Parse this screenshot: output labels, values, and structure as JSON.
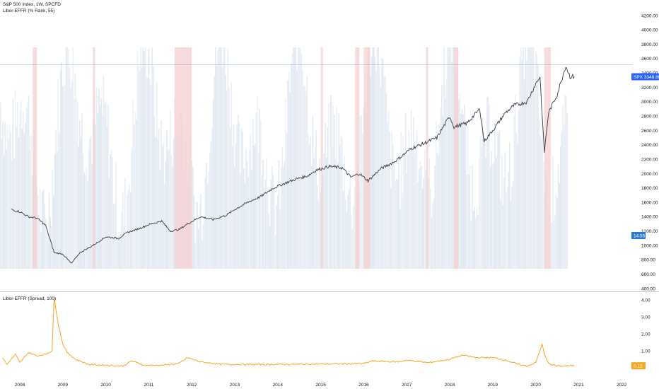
{
  "legends": {
    "price_title": "S&P 500 Index, 1W, SPCFD",
    "rank_title": "Libor-EFFR (% Rank, 55)",
    "spread_title": "Libor-EFFR (Spread, 100)"
  },
  "chart_data": [
    {
      "type": "line",
      "title": "S&P 500 Index, 1W, SPCFD",
      "x_ticks": [
        "2008",
        "2009",
        "2010",
        "2011",
        "2012",
        "2013",
        "2014",
        "2015",
        "2016",
        "2017",
        "2018",
        "2019",
        "2020",
        "2021",
        "2022"
      ],
      "y_ticks": [
        "4200.00",
        "4000.00",
        "3800.00",
        "3600.00",
        "3400.00",
        "3200.00",
        "3000.00",
        "2800.00",
        "2600.00",
        "2400.00",
        "2200.00",
        "2000.00",
        "1800.00",
        "1600.00",
        "1400.00",
        "1200.00",
        "1000.00",
        "800.00",
        "600.00",
        "400.00"
      ],
      "ylim": [
        400,
        4200
      ],
      "x": [
        2007.8,
        2008.0,
        2008.2,
        2008.4,
        2008.6,
        2008.8,
        2009.0,
        2009.2,
        2009.4,
        2009.7,
        2010.0,
        2010.3,
        2010.5,
        2010.8,
        2011.0,
        2011.3,
        2011.5,
        2011.7,
        2011.9,
        2012.2,
        2012.5,
        2012.8,
        2013.0,
        2013.3,
        2013.6,
        2013.9,
        2014.1,
        2014.4,
        2014.7,
        2014.9,
        2015.2,
        2015.5,
        2015.7,
        2015.9,
        2016.1,
        2016.4,
        2016.7,
        2016.9,
        2017.1,
        2017.4,
        2017.7,
        2018.0,
        2018.1,
        2018.4,
        2018.7,
        2018.8,
        2019.0,
        2019.3,
        2019.5,
        2019.8,
        2020.0,
        2020.1,
        2020.2,
        2020.3,
        2020.5,
        2020.7,
        2020.8,
        2020.9
      ],
      "y": [
        1500,
        1470,
        1400,
        1380,
        1280,
        900,
        880,
        750,
        900,
        1000,
        1120,
        1100,
        1180,
        1240,
        1290,
        1340,
        1200,
        1220,
        1300,
        1400,
        1360,
        1420,
        1500,
        1600,
        1680,
        1800,
        1850,
        1920,
        1970,
        2050,
        2100,
        2080,
        1950,
        2000,
        1900,
        2070,
        2160,
        2250,
        2350,
        2420,
        2500,
        2800,
        2650,
        2700,
        2900,
        2450,
        2600,
        2850,
        2950,
        3000,
        3250,
        3350,
        2300,
        2850,
        3100,
        3500,
        3350,
        3350
      ],
      "price_tag": {
        "symbol": "SPX",
        "value": "3348.86"
      }
    },
    {
      "type": "area",
      "title": "Libor-EFFR (% Rank, 55)",
      "current_value": "14.55",
      "highlight_ranges_red": [
        [
          2008.3,
          2008.4
        ],
        [
          2009.7,
          2009.75
        ],
        [
          2011.6,
          2012.0
        ],
        [
          2015.0,
          2015.05
        ],
        [
          2015.8,
          2015.9
        ],
        [
          2016.0,
          2016.15
        ],
        [
          2017.45,
          2017.5
        ],
        [
          2018.1,
          2018.2
        ],
        [
          2020.2,
          2020.35
        ]
      ]
    },
    {
      "type": "line",
      "title": "Libor-EFFR (Spread, 100)",
      "y_ticks": [
        "4.00",
        "3.00",
        "2.00",
        "1.00"
      ],
      "ylim": [
        -0.5,
        4.5
      ],
      "x": [
        2007.6,
        2007.7,
        2007.9,
        2008.0,
        2008.2,
        2008.4,
        2008.6,
        2008.75,
        2008.8,
        2008.9,
        2009.0,
        2009.1,
        2009.3,
        2009.6,
        2010.0,
        2010.4,
        2010.6,
        2010.9,
        2011.3,
        2011.7,
        2011.9,
        2012.2,
        2012.7,
        2013.0,
        2014.0,
        2015.0,
        2016.0,
        2016.2,
        2016.8,
        2017.0,
        2017.5,
        2018.0,
        2018.3,
        2018.6,
        2019.0,
        2019.3,
        2019.6,
        2019.8,
        2020.0,
        2020.15,
        2020.2,
        2020.3,
        2020.5,
        2020.9
      ],
      "y": [
        0.6,
        0.2,
        0.8,
        0.3,
        0.9,
        0.7,
        0.8,
        1.0,
        4.1,
        2.5,
        1.4,
        0.9,
        0.5,
        0.2,
        0.15,
        0.1,
        0.4,
        0.15,
        0.15,
        0.25,
        0.6,
        0.35,
        0.2,
        0.2,
        0.2,
        0.22,
        0.25,
        0.4,
        0.35,
        0.45,
        0.3,
        0.5,
        0.75,
        0.6,
        0.6,
        0.45,
        0.2,
        0.1,
        0.3,
        1.4,
        0.8,
        0.25,
        0.1,
        0.12
      ],
      "current_value": "0.12"
    }
  ],
  "colors": {
    "price_line": "#363a45",
    "rank_fill": "#dfe7f0",
    "red_band": "#f6cfd0",
    "spread_line": "#f5a623",
    "price_tag_bg": "#2962ff",
    "rank_tag_bg": "#2979c7",
    "spread_tag_bg": "#f5a623",
    "axis_text": "#131722",
    "divider": "#c9cbd1"
  }
}
